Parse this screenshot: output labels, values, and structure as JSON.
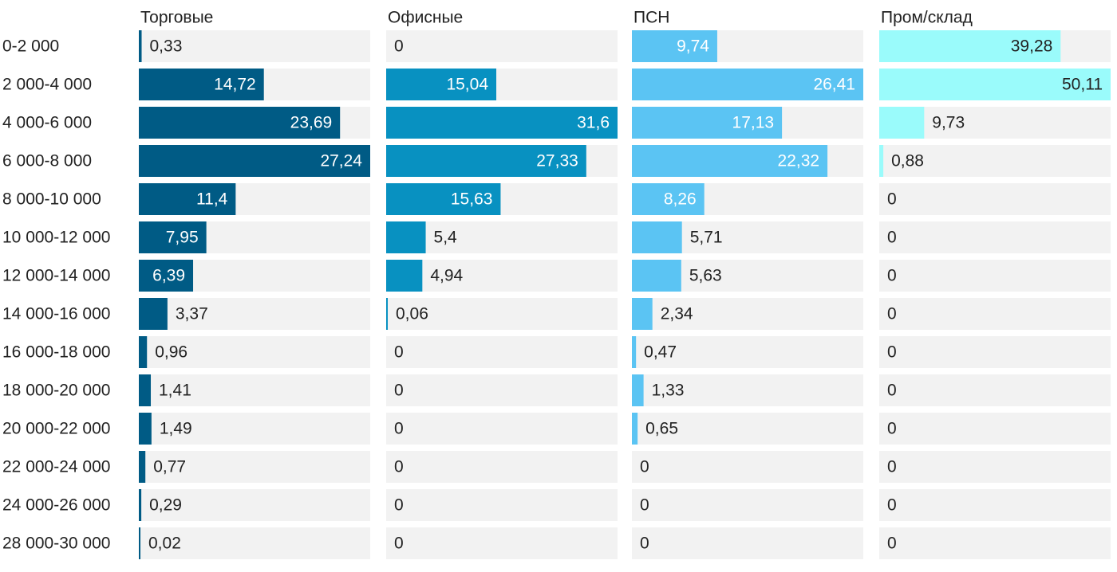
{
  "chart_data": {
    "type": "bar",
    "orientation": "horizontal",
    "layout": "small-multiples",
    "categories": [
      "0-2 000",
      "2 000-4 000",
      "4 000-6 000",
      "6 000-8 000",
      "8 000-10 000",
      "10 000-12 000",
      "12 000-14 000",
      "14 000-16 000",
      "16 000-18 000",
      "18 000-20 000",
      "20 000-22 000",
      "22 000-24 000",
      "24 000-26 000",
      "28 000-30 000"
    ],
    "series": [
      {
        "name": "Торговые",
        "color": "#005b85",
        "values": [
          0.33,
          14.72,
          23.69,
          27.24,
          11.4,
          7.95,
          6.39,
          3.37,
          0.96,
          1.41,
          1.49,
          0.77,
          0.29,
          0.02
        ],
        "labels": [
          "0,33",
          "14,72",
          "23,69",
          "27,24",
          "11,4",
          "7,95",
          "6,39",
          "3,37",
          "0,96",
          "1,41",
          "1,49",
          "0,77",
          "0,29",
          "0,02"
        ],
        "xlim": [
          0,
          27.24
        ]
      },
      {
        "name": "Офисные",
        "color": "#0891c1",
        "values": [
          0,
          15.04,
          31.6,
          27.33,
          15.63,
          5.4,
          4.94,
          0.06,
          0,
          0,
          0,
          0,
          0,
          0
        ],
        "labels": [
          "0",
          "15,04",
          "31,6",
          "27,33",
          "15,63",
          "5,4",
          "4,94",
          "0,06",
          "0",
          "0",
          "0",
          "0",
          "0",
          "0"
        ],
        "xlim": [
          0,
          31.6
        ]
      },
      {
        "name": "ПСН",
        "color": "#5bc4f3",
        "values": [
          9.74,
          26.41,
          17.13,
          22.32,
          8.26,
          5.71,
          5.63,
          2.34,
          0.47,
          1.33,
          0.65,
          0,
          0,
          0
        ],
        "labels": [
          "9,74",
          "26,41",
          "17,13",
          "22,32",
          "8,26",
          "5,71",
          "5,63",
          "2,34",
          "0,47",
          "1,33",
          "0,65",
          "0",
          "0",
          "0"
        ],
        "xlim": [
          0,
          26.41
        ]
      },
      {
        "name": "Пром/склад",
        "color": "#9afbfb",
        "values": [
          39.28,
          50.11,
          9.73,
          0.88,
          0,
          0,
          0,
          0,
          0,
          0,
          0,
          0,
          0,
          0
        ],
        "labels": [
          "39,28",
          "50,11",
          "9,73",
          "0,88",
          "0",
          "0",
          "0",
          "0",
          "0",
          "0",
          "0",
          "0",
          "0",
          "0"
        ],
        "xlim": [
          0,
          50.11
        ]
      }
    ],
    "track_color": "#f2f2f2",
    "label_color_dark": "#222222",
    "label_color_light": "#ffffff",
    "grid": false,
    "legend": "none"
  }
}
